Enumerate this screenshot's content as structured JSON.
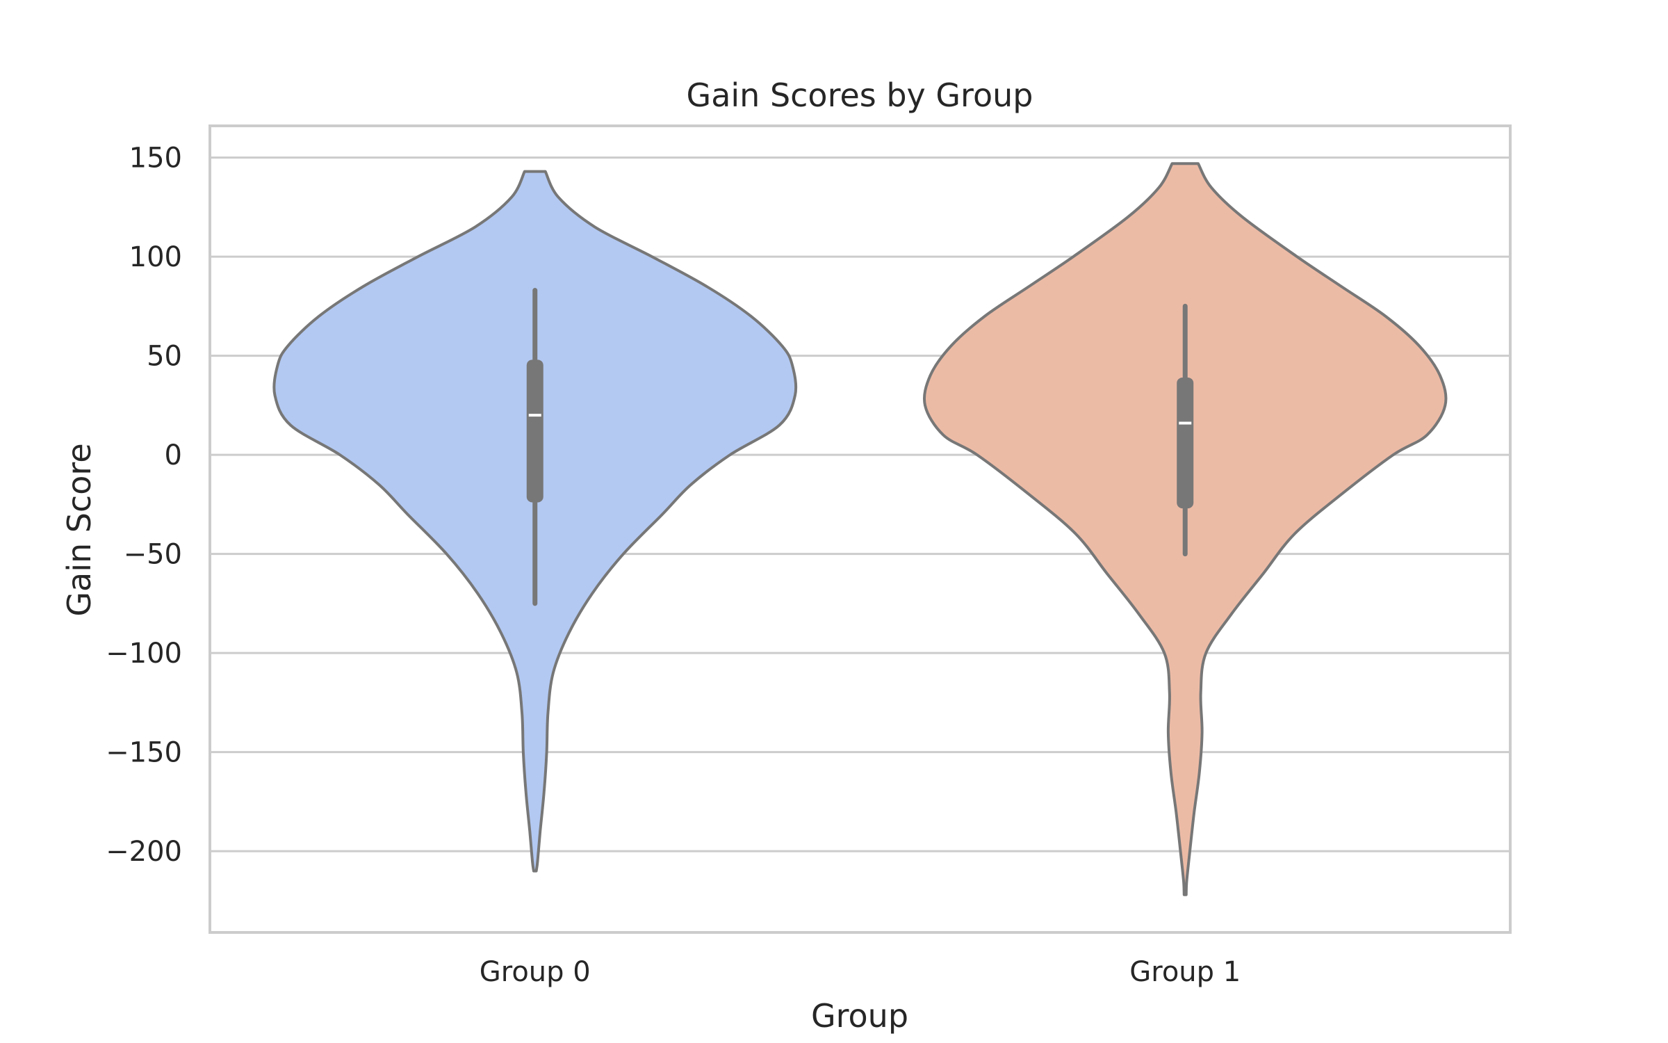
{
  "chart_data": {
    "type": "violin",
    "title": "Gain Scores by Group",
    "xlabel": "Group",
    "ylabel": "Gain Score",
    "ylim": [
      -241,
      166
    ],
    "yticks": [
      150,
      100,
      50,
      0,
      -50,
      -100,
      -150,
      -200
    ],
    "ytick_labels": [
      "150",
      "100",
      "50",
      "0",
      "−50",
      "−100",
      "−150",
      "−200"
    ],
    "grid": "y",
    "categories": [
      "Group 0",
      "Group 1"
    ],
    "colors": [
      "#b3c9f2",
      "#ecbba6"
    ],
    "outline_color": "#777777",
    "box_color": "#777777",
    "median_color": "#ffffff",
    "violins": [
      {
        "category": "Group 0",
        "min": -210,
        "max": 143,
        "box": {
          "q1": -24,
          "median": 20,
          "q3": 48
        },
        "whiskers": [
          -75,
          83
        ],
        "density": [
          [
            143,
            0.04
          ],
          [
            130,
            0.09
          ],
          [
            115,
            0.23
          ],
          [
            100,
            0.45
          ],
          [
            85,
            0.66
          ],
          [
            70,
            0.83
          ],
          [
            55,
            0.95
          ],
          [
            45,
            0.99
          ],
          [
            30,
            1.0
          ],
          [
            15,
            0.94
          ],
          [
            0,
            0.75
          ],
          [
            -15,
            0.6
          ],
          [
            -30,
            0.49
          ],
          [
            -50,
            0.34
          ],
          [
            -70,
            0.22
          ],
          [
            -90,
            0.13
          ],
          [
            -110,
            0.07
          ],
          [
            -130,
            0.05
          ],
          [
            -150,
            0.045
          ],
          [
            -170,
            0.035
          ],
          [
            -190,
            0.02
          ],
          [
            -205,
            0.01
          ],
          [
            -210,
            0.005
          ]
        ]
      },
      {
        "category": "Group 1",
        "min": -222,
        "max": 147,
        "box": {
          "q1": -27,
          "median": 16,
          "q3": 39
        },
        "whiskers": [
          -50,
          75
        ],
        "density": [
          [
            147,
            0.05
          ],
          [
            135,
            0.1
          ],
          [
            120,
            0.22
          ],
          [
            100,
            0.43
          ],
          [
            85,
            0.6
          ],
          [
            70,
            0.77
          ],
          [
            55,
            0.9
          ],
          [
            40,
            0.98
          ],
          [
            25,
            1.0
          ],
          [
            10,
            0.93
          ],
          [
            0,
            0.8
          ],
          [
            -20,
            0.6
          ],
          [
            -40,
            0.42
          ],
          [
            -60,
            0.3
          ],
          [
            -80,
            0.18
          ],
          [
            -100,
            0.08
          ],
          [
            -120,
            0.06
          ],
          [
            -140,
            0.065
          ],
          [
            -160,
            0.055
          ],
          [
            -180,
            0.035
          ],
          [
            -200,
            0.018
          ],
          [
            -215,
            0.006
          ],
          [
            -222,
            0.004
          ]
        ]
      }
    ]
  }
}
